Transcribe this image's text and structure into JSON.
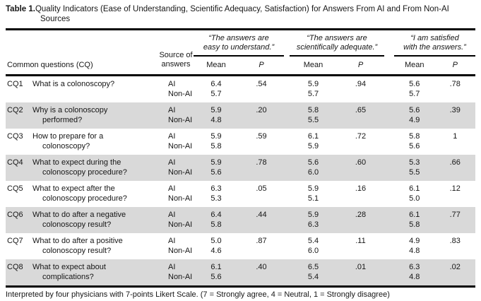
{
  "title": {
    "label": "Table 1.",
    "line1": "Quality Indicators (Ease of Understanding, Scientific Adequacy, Satisfaction) for Answers From AI and From Non-AI",
    "line2": "Sources"
  },
  "header": {
    "questions_col": "Common questions (CQ)",
    "source_col_line1": "Source of",
    "source_col_line2": "answers",
    "groups": [
      {
        "line1": "“The answers are",
        "line2": "easy to understand.”",
        "mean_label": "Mean",
        "p_label": "P"
      },
      {
        "line1": "“The answers are",
        "line2": "scientifically adequate.”",
        "mean_label": "Mean",
        "p_label": "P"
      },
      {
        "line1": "“I am satisfied",
        "line2": "with the answers.”",
        "mean_label": "Mean",
        "p_label": "P"
      }
    ]
  },
  "rows": [
    {
      "id": "CQ1",
      "q1": "What is a colonoscopy?",
      "q2": "",
      "sources": [
        "AI",
        "Non-AI"
      ],
      "ease": {
        "mean": [
          "6.4",
          "5.7"
        ],
        "p": ".54"
      },
      "sci": {
        "mean": [
          "5.9",
          "5.7"
        ],
        "p": ".94"
      },
      "sat": {
        "mean": [
          "5.6",
          "5.7"
        ],
        "p": ".78"
      }
    },
    {
      "id": "CQ2",
      "q1": "Why is a colonoscopy",
      "q2": "performed?",
      "sources": [
        "AI",
        "Non-AI"
      ],
      "ease": {
        "mean": [
          "5.9",
          "4.8"
        ],
        "p": ".20"
      },
      "sci": {
        "mean": [
          "5.8",
          "5.5"
        ],
        "p": ".65"
      },
      "sat": {
        "mean": [
          "5.6",
          "4.9"
        ],
        "p": ".39"
      }
    },
    {
      "id": "CQ3",
      "q1": "How to prepare for a",
      "q2": "colonoscopy?",
      "sources": [
        "AI",
        "Non-AI"
      ],
      "ease": {
        "mean": [
          "5.9",
          "5.8"
        ],
        "p": ".59"
      },
      "sci": {
        "mean": [
          "6.1",
          "5.9"
        ],
        "p": ".72"
      },
      "sat": {
        "mean": [
          "5.8",
          "5.6"
        ],
        "p": "1"
      }
    },
    {
      "id": "CQ4",
      "q1": "What to expect during the",
      "q2": "colonoscopy procedure?",
      "sources": [
        "AI",
        "Non-AI"
      ],
      "ease": {
        "mean": [
          "5.9",
          "5.6"
        ],
        "p": ".78"
      },
      "sci": {
        "mean": [
          "5.6",
          "6.0"
        ],
        "p": ".60"
      },
      "sat": {
        "mean": [
          "5.3",
          "5.5"
        ],
        "p": ".66"
      }
    },
    {
      "id": "CQ5",
      "q1": "What to expect after the",
      "q2": "colonoscopy procedure?",
      "sources": [
        "AI",
        "Non-AI"
      ],
      "ease": {
        "mean": [
          "6.3",
          "5.3"
        ],
        "p": ".05"
      },
      "sci": {
        "mean": [
          "5.9",
          "5.1"
        ],
        "p": ".16"
      },
      "sat": {
        "mean": [
          "6.1",
          "5.0"
        ],
        "p": ".12"
      }
    },
    {
      "id": "CQ6",
      "q1": "What to do after a negative",
      "q2": "colonoscopy result?",
      "sources": [
        "AI",
        "Non-AI"
      ],
      "ease": {
        "mean": [
          "6.4",
          "5.8"
        ],
        "p": ".44"
      },
      "sci": {
        "mean": [
          "5.9",
          "6.3"
        ],
        "p": ".28"
      },
      "sat": {
        "mean": [
          "6.1",
          "5.8"
        ],
        "p": ".77"
      }
    },
    {
      "id": "CQ7",
      "q1": "What to do after a positive",
      "q2": "colonoscopy result?",
      "sources": [
        "AI",
        "Non-AI"
      ],
      "ease": {
        "mean": [
          "5.0",
          "4.6"
        ],
        "p": ".87"
      },
      "sci": {
        "mean": [
          "5.4",
          "6.0"
        ],
        "p": ".11"
      },
      "sat": {
        "mean": [
          "4.9",
          "4.8"
        ],
        "p": ".83"
      }
    },
    {
      "id": "CQ8",
      "q1": "What to expect about",
      "q2": "complications?",
      "sources": [
        "AI",
        "Non-AI"
      ],
      "ease": {
        "mean": [
          "6.1",
          "5.6"
        ],
        "p": ".40"
      },
      "sci": {
        "mean": [
          "6.5",
          "5.4"
        ],
        "p": ".01"
      },
      "sat": {
        "mean": [
          "6.3",
          "4.8"
        ],
        "p": ".02"
      }
    }
  ],
  "footnote": "Interpreted by four physicians with 7-points Likert Scale. (7 = Strongly agree, 4 = Neutral, 1 = Strongly disagree)",
  "colors": {
    "stripe": "#d9d9d9",
    "rule": "#000000",
    "text": "#161616"
  }
}
